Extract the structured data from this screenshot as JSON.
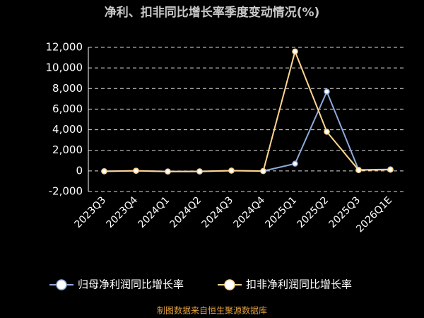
{
  "chart_data": {
    "type": "line",
    "title": "净利、扣非同比增长率季度变动情况(%)",
    "categories": [
      "2023Q3",
      "2023Q4",
      "2024Q1",
      "2024Q2",
      "2024Q3",
      "2024Q4",
      "2025Q1",
      "2025Q2",
      "2025Q3",
      "2026Q1E"
    ],
    "series": [
      {
        "name": "归母净利润同比增长率",
        "color": "#8faadc",
        "values": [
          -30,
          10,
          -50,
          -60,
          20,
          -10,
          700,
          7700,
          100,
          150
        ]
      },
      {
        "name": "扣非净利润同比增长率",
        "color": "#ffd58f",
        "values": [
          -40,
          20,
          -60,
          -40,
          30,
          -20,
          11600,
          3800,
          80,
          120
        ]
      }
    ],
    "ylim": [
      -2000,
      12000
    ],
    "yticks": [
      {
        "value": -2000,
        "label": "-2,000"
      },
      0,
      {
        "value": 2000,
        "label": "2,000"
      },
      {
        "value": 4000,
        "label": "4,000"
      },
      {
        "value": 6000,
        "label": "6,000"
      },
      {
        "value": 8000,
        "label": "8,000"
      },
      {
        "value": 10000,
        "label": "10,000"
      },
      {
        "value": 12000,
        "label": "12,000"
      }
    ],
    "grid": true,
    "source": "制图数据来自恒生聚源数据库"
  }
}
